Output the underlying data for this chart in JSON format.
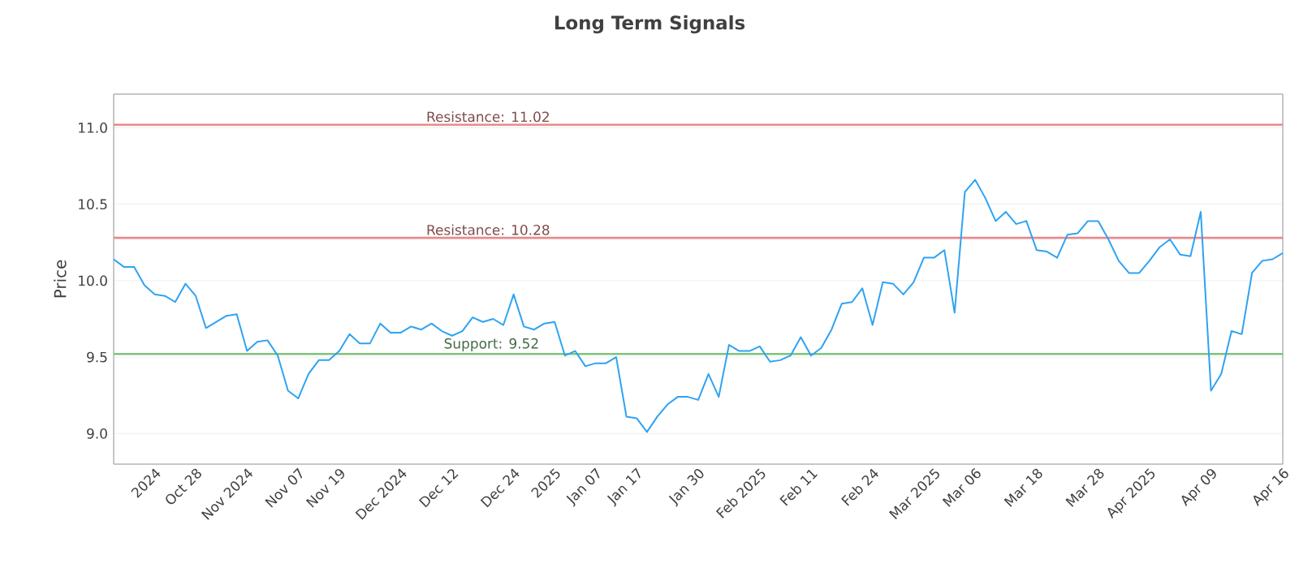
{
  "chart_data": {
    "type": "line",
    "title": "Long Term Signals",
    "ylabel": "Price",
    "categories": [
      null,
      null,
      null,
      null,
      "2024",
      null,
      null,
      null,
      "Oct 28",
      null,
      null,
      null,
      null,
      "Nov 2024",
      null,
      null,
      null,
      null,
      "Nov 07",
      null,
      null,
      null,
      "Nov 19",
      null,
      null,
      null,
      null,
      null,
      "Dec 2024",
      null,
      null,
      null,
      null,
      "Dec 12",
      null,
      null,
      null,
      null,
      null,
      "Dec 24",
      null,
      null,
      null,
      "2025",
      null,
      null,
      null,
      "Jan 07",
      null,
      null,
      null,
      "Jan 17",
      null,
      null,
      null,
      null,
      null,
      "Jan 30",
      null,
      null,
      null,
      null,
      null,
      "Feb 2025",
      null,
      null,
      null,
      null,
      "Feb 11",
      null,
      null,
      null,
      null,
      null,
      "Feb 24",
      null,
      null,
      null,
      null,
      null,
      "Mar 2025",
      null,
      null,
      null,
      "Mar 06",
      null,
      null,
      null,
      null,
      null,
      "Mar 18",
      null,
      null,
      null,
      null,
      null,
      "Mar 28",
      null,
      null,
      null,
      null,
      "Apr 2025",
      null,
      null,
      null,
      null,
      null,
      "Apr 09",
      null,
      null,
      null,
      null,
      null,
      null,
      "Apr 16"
    ],
    "series": [
      {
        "color": "#2ea3f2",
        "values": [
          10.14,
          10.09,
          10.09,
          9.97,
          9.91,
          9.9,
          9.86,
          9.98,
          9.9,
          9.69,
          9.73,
          9.77,
          9.78,
          9.54,
          9.6,
          9.61,
          9.51,
          9.28,
          9.23,
          9.39,
          9.48,
          9.48,
          9.54,
          9.65,
          9.59,
          9.59,
          9.72,
          9.66,
          9.66,
          9.7,
          9.68,
          9.72,
          9.67,
          9.64,
          9.67,
          9.76,
          9.73,
          9.75,
          9.71,
          9.91,
          9.7,
          9.68,
          9.72,
          9.73,
          9.51,
          9.54,
          9.44,
          9.46,
          9.46,
          9.5,
          9.11,
          9.1,
          9.01,
          9.11,
          9.19,
          9.24,
          9.24,
          9.22,
          9.39,
          9.24,
          9.58,
          9.54,
          9.54,
          9.57,
          9.47,
          9.48,
          9.51,
          9.63,
          9.51,
          9.56,
          9.68,
          9.85,
          9.86,
          9.95,
          9.71,
          9.99,
          9.98,
          9.91,
          9.99,
          10.15,
          10.15,
          10.2,
          9.79,
          10.58,
          10.66,
          10.54,
          10.39,
          10.45,
          10.37,
          10.39,
          10.2,
          10.19,
          10.15,
          10.3,
          10.31,
          10.39,
          10.39,
          10.27,
          10.13,
          10.05,
          10.05,
          10.13,
          10.22,
          10.27,
          10.17,
          10.16,
          10.45,
          9.28,
          9.39,
          9.67,
          9.65,
          10.05,
          10.13,
          10.14,
          10.18
        ]
      }
    ],
    "ylim": [
      8.8,
      11.22
    ],
    "yticks": [
      {
        "value": 9,
        "label": "9.0"
      },
      {
        "value": 9.5,
        "label": "9.5"
      },
      {
        "value": 10,
        "label": "10.0"
      },
      {
        "value": 10.5,
        "label": "10.5"
      },
      {
        "value": 11,
        "label": "11.0"
      }
    ],
    "grid": "y",
    "ref_lines": [
      {
        "axis": "y",
        "value": 11.02,
        "label": "Resistance: 11.02",
        "color": "#e88a8a"
      },
      {
        "axis": "y",
        "value": 10.28,
        "label": "Resistance: 10.28",
        "color": "#e88a8a"
      },
      {
        "axis": "y",
        "value": 9.52,
        "label": "Support: 9.52",
        "color": "#7cc47c"
      }
    ]
  }
}
